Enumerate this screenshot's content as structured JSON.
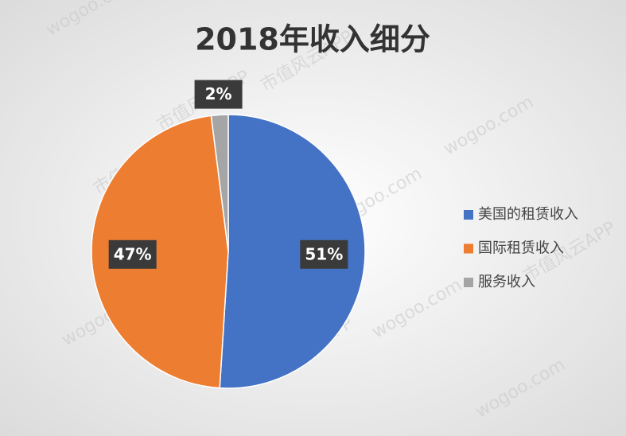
{
  "chart_data": {
    "type": "pie",
    "title": "2018年收入细分",
    "categories": [
      "美国的租赁收入",
      "国际租赁收入",
      "服务收入"
    ],
    "values": [
      51,
      47,
      2
    ],
    "value_labels": [
      "51%",
      "47%",
      "2%"
    ],
    "colors": [
      "#4472c4",
      "#ed7d31",
      "#a5a5a5"
    ],
    "legend": "right"
  },
  "watermark": [
    "wogoo.com",
    "市值风云APP"
  ]
}
